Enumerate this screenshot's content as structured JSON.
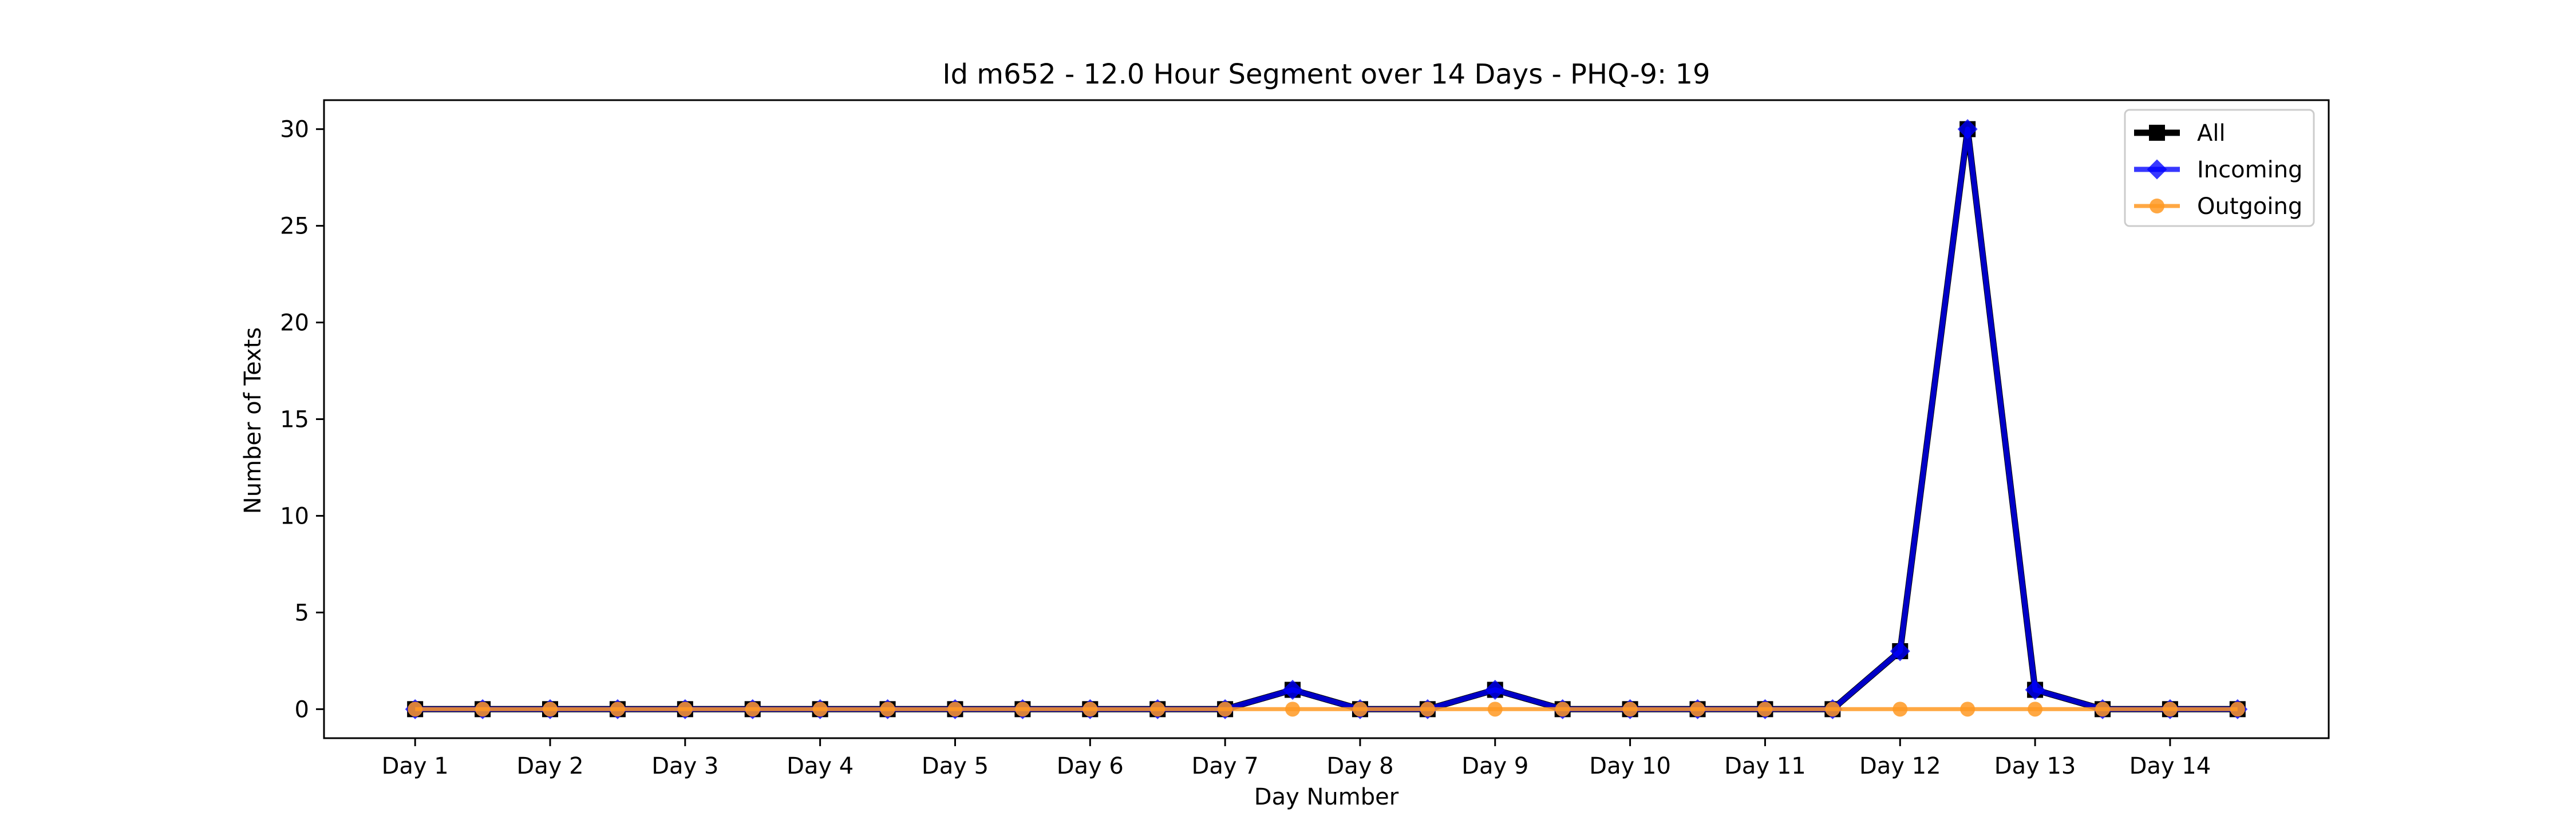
{
  "chart_data": {
    "type": "line",
    "title": "Id m652 - 12.0 Hour Segment over 14 Days - PHQ-9: 19",
    "xlabel": "Day Number",
    "ylabel": "Number of Texts",
    "ylim": [
      -1.5,
      31.5
    ],
    "yticks": [
      0,
      5,
      10,
      15,
      20,
      25,
      30
    ],
    "ytick_labels": [
      "0",
      "5",
      "10",
      "15",
      "20",
      "25",
      "30"
    ],
    "xtick_labels": [
      "Day 1",
      "Day 2",
      "Day 3",
      "Day 4",
      "Day 5",
      "Day 6",
      "Day 7",
      "Day 8",
      "Day 9",
      "Day 10",
      "Day 11",
      "Day 12",
      "Day 13",
      "Day 14"
    ],
    "xtick_positions": [
      0,
      2,
      4,
      6,
      8,
      10,
      12,
      14,
      16,
      18,
      20,
      22,
      24,
      26
    ],
    "x": [
      0,
      1,
      2,
      3,
      4,
      5,
      6,
      7,
      8,
      9,
      10,
      11,
      12,
      13,
      14,
      15,
      16,
      17,
      18,
      19,
      20,
      21,
      22,
      23,
      24,
      25,
      26,
      27
    ],
    "legend_position": "upper-right",
    "grid": false,
    "series": [
      {
        "name": "All",
        "color": "#000000",
        "marker": "square",
        "values": [
          0,
          0,
          0,
          0,
          0,
          0,
          0,
          0,
          0,
          0,
          0,
          0,
          0,
          1,
          0,
          0,
          1,
          0,
          0,
          0,
          0,
          0,
          3,
          30,
          1,
          0,
          0,
          0
        ]
      },
      {
        "name": "Incoming",
        "color": "#0000ff",
        "marker": "diamond",
        "values": [
          0,
          0,
          0,
          0,
          0,
          0,
          0,
          0,
          0,
          0,
          0,
          0,
          0,
          1,
          0,
          0,
          1,
          0,
          0,
          0,
          0,
          0,
          3,
          30,
          1,
          0,
          0,
          0
        ]
      },
      {
        "name": "Outgoing",
        "color": "#ff9922",
        "marker": "circle",
        "values": [
          0,
          0,
          0,
          0,
          0,
          0,
          0,
          0,
          0,
          0,
          0,
          0,
          0,
          0,
          0,
          0,
          0,
          0,
          0,
          0,
          0,
          0,
          0,
          0,
          0,
          0,
          0,
          0
        ]
      }
    ]
  }
}
